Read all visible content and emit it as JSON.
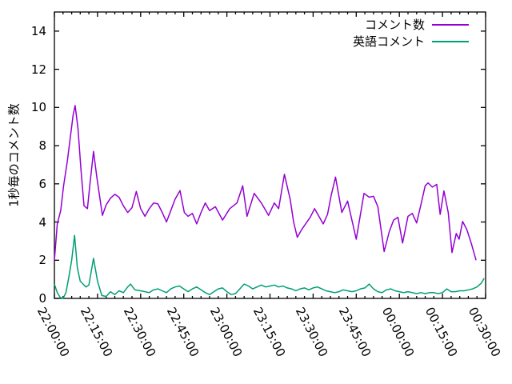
{
  "chart_data": {
    "type": "line",
    "title": "",
    "xlabel": "",
    "ylabel": "1秒毎のコメント数",
    "ylim": [
      0,
      15
    ],
    "y_ticks": [
      0,
      2,
      4,
      6,
      8,
      10,
      12,
      14
    ],
    "x_tick_interval_minutes": 15,
    "x_minor_tick_interval_minutes": 3,
    "x_tick_labels": [
      "22:00:00",
      "22:15:00",
      "22:30:00",
      "22:45:00",
      "23:00:00",
      "23:15:00",
      "23:30:00",
      "23:45:00",
      "00:00:00",
      "00:15:00",
      "00:30:00"
    ],
    "grid": false,
    "legend_position": "top-right-inside",
    "series": [
      {
        "name": "コメント数",
        "color": "#9400d3",
        "points": [
          [
            0,
            2.0
          ],
          [
            1,
            3.9
          ],
          [
            2.2,
            4.6
          ],
          [
            3.2,
            5.9
          ],
          [
            4.5,
            7.2
          ],
          [
            5.5,
            8.4
          ],
          [
            6.5,
            9.6
          ],
          [
            7.2,
            10.1
          ],
          [
            8.2,
            8.9
          ],
          [
            9.2,
            6.8
          ],
          [
            10.3,
            4.85
          ],
          [
            11.5,
            4.7
          ],
          [
            12.3,
            5.9
          ],
          [
            13.6,
            7.7
          ],
          [
            14.8,
            6.3
          ],
          [
            16.7,
            4.35
          ],
          [
            18,
            4.9
          ],
          [
            19.5,
            5.25
          ],
          [
            21,
            5.45
          ],
          [
            22.5,
            5.3
          ],
          [
            24,
            4.85
          ],
          [
            25.5,
            4.5
          ],
          [
            27,
            4.75
          ],
          [
            28.5,
            5.6
          ],
          [
            30,
            4.7
          ],
          [
            31.5,
            4.3
          ],
          [
            33,
            4.7
          ],
          [
            34.5,
            5.0
          ],
          [
            36,
            4.95
          ],
          [
            37.5,
            4.5
          ],
          [
            39,
            4.0
          ],
          [
            40.5,
            4.6
          ],
          [
            42,
            5.2
          ],
          [
            43.7,
            5.65
          ],
          [
            45.2,
            4.5
          ],
          [
            46.5,
            4.3
          ],
          [
            48,
            4.45
          ],
          [
            49.5,
            3.9
          ],
          [
            51,
            4.5
          ],
          [
            52.5,
            5.0
          ],
          [
            54,
            4.6
          ],
          [
            56,
            4.8
          ],
          [
            58.5,
            4.1
          ],
          [
            61,
            4.7
          ],
          [
            63.5,
            5.0
          ],
          [
            65.5,
            5.9
          ],
          [
            67,
            4.3
          ],
          [
            69.5,
            5.5
          ],
          [
            72,
            5.0
          ],
          [
            74.5,
            4.35
          ],
          [
            76.5,
            5.0
          ],
          [
            78,
            4.7
          ],
          [
            80,
            6.5
          ],
          [
            82,
            5.2
          ],
          [
            83.2,
            4.0
          ],
          [
            84.5,
            3.2
          ],
          [
            86,
            3.6
          ],
          [
            89,
            4.25
          ],
          [
            90.5,
            4.7
          ],
          [
            93.5,
            3.9
          ],
          [
            95,
            4.4
          ],
          [
            96.3,
            5.4
          ],
          [
            97.8,
            6.35
          ],
          [
            100,
            4.5
          ],
          [
            102,
            5.1
          ],
          [
            105,
            3.1
          ],
          [
            107.7,
            5.5
          ],
          [
            109.5,
            5.3
          ],
          [
            111,
            5.35
          ],
          [
            112.5,
            4.8
          ],
          [
            114.7,
            2.45
          ],
          [
            116.5,
            3.5
          ],
          [
            118,
            4.1
          ],
          [
            119.5,
            4.25
          ],
          [
            121.1,
            2.9
          ],
          [
            123,
            4.3
          ],
          [
            124.5,
            4.45
          ],
          [
            126,
            3.95
          ],
          [
            127.5,
            4.9
          ],
          [
            129,
            5.9
          ],
          [
            130,
            6.05
          ],
          [
            131.5,
            5.83
          ],
          [
            133,
            5.97
          ],
          [
            134.2,
            4.4
          ],
          [
            135.5,
            5.63
          ],
          [
            137,
            4.5
          ],
          [
            138.3,
            2.4
          ],
          [
            139.8,
            3.4
          ],
          [
            140.8,
            3.1
          ],
          [
            142,
            4.03
          ],
          [
            143.5,
            3.6
          ],
          [
            145,
            2.9
          ],
          [
            146.7,
            2.0
          ]
        ]
      },
      {
        "name": "英語コメント",
        "color": "#009e73",
        "points": [
          [
            0,
            0.75
          ],
          [
            1,
            0.3
          ],
          [
            2,
            0.05
          ],
          [
            3,
            0.0
          ],
          [
            4,
            0.3
          ],
          [
            5,
            1.1
          ],
          [
            6,
            2.0
          ],
          [
            7,
            3.3
          ],
          [
            8,
            1.6
          ],
          [
            9,
            0.9
          ],
          [
            10,
            0.75
          ],
          [
            11,
            0.6
          ],
          [
            12,
            0.7
          ],
          [
            13.6,
            2.1
          ],
          [
            15,
            0.9
          ],
          [
            16.5,
            0.15
          ],
          [
            18,
            0.1
          ],
          [
            19.5,
            0.35
          ],
          [
            21,
            0.2
          ],
          [
            22.5,
            0.4
          ],
          [
            24,
            0.3
          ],
          [
            25.5,
            0.6
          ],
          [
            26.5,
            0.75
          ],
          [
            28,
            0.45
          ],
          [
            30,
            0.4
          ],
          [
            31.5,
            0.35
          ],
          [
            33,
            0.3
          ],
          [
            34.5,
            0.45
          ],
          [
            36,
            0.5
          ],
          [
            37.5,
            0.4
          ],
          [
            39,
            0.3
          ],
          [
            40.5,
            0.5
          ],
          [
            42,
            0.6
          ],
          [
            43.5,
            0.65
          ],
          [
            45,
            0.5
          ],
          [
            46.5,
            0.35
          ],
          [
            48,
            0.5
          ],
          [
            49.5,
            0.6
          ],
          [
            51,
            0.45
          ],
          [
            52.5,
            0.3
          ],
          [
            54,
            0.2
          ],
          [
            55.5,
            0.35
          ],
          [
            57,
            0.5
          ],
          [
            58.5,
            0.55
          ],
          [
            60,
            0.35
          ],
          [
            61.5,
            0.2
          ],
          [
            63,
            0.25
          ],
          [
            64.5,
            0.5
          ],
          [
            66,
            0.75
          ],
          [
            67.5,
            0.65
          ],
          [
            69,
            0.5
          ],
          [
            70.5,
            0.6
          ],
          [
            72,
            0.7
          ],
          [
            73.5,
            0.6
          ],
          [
            75,
            0.65
          ],
          [
            76.5,
            0.7
          ],
          [
            78,
            0.6
          ],
          [
            79.5,
            0.65
          ],
          [
            81,
            0.55
          ],
          [
            82.5,
            0.5
          ],
          [
            84,
            0.4
          ],
          [
            85.5,
            0.5
          ],
          [
            87,
            0.55
          ],
          [
            88.5,
            0.45
          ],
          [
            90,
            0.55
          ],
          [
            91.5,
            0.6
          ],
          [
            93,
            0.5
          ],
          [
            94.5,
            0.4
          ],
          [
            96,
            0.35
          ],
          [
            97.5,
            0.3
          ],
          [
            99,
            0.35
          ],
          [
            100.5,
            0.45
          ],
          [
            102,
            0.4
          ],
          [
            103.5,
            0.35
          ],
          [
            105,
            0.4
          ],
          [
            106.5,
            0.5
          ],
          [
            108,
            0.55
          ],
          [
            109.5,
            0.75
          ],
          [
            111,
            0.5
          ],
          [
            112.5,
            0.35
          ],
          [
            114,
            0.3
          ],
          [
            115.5,
            0.45
          ],
          [
            117,
            0.5
          ],
          [
            118.5,
            0.4
          ],
          [
            120,
            0.35
          ],
          [
            121.5,
            0.3
          ],
          [
            123,
            0.35
          ],
          [
            124.5,
            0.3
          ],
          [
            126,
            0.25
          ],
          [
            127.5,
            0.3
          ],
          [
            129,
            0.25
          ],
          [
            130.5,
            0.3
          ],
          [
            132,
            0.3
          ],
          [
            133.5,
            0.25
          ],
          [
            135,
            0.3
          ],
          [
            136.5,
            0.5
          ],
          [
            138,
            0.35
          ],
          [
            139.5,
            0.35
          ],
          [
            141,
            0.4
          ],
          [
            142.5,
            0.4
          ],
          [
            144,
            0.45
          ],
          [
            145.5,
            0.5
          ],
          [
            147,
            0.6
          ],
          [
            148.5,
            0.8
          ],
          [
            149.5,
            1.05
          ]
        ]
      }
    ]
  }
}
